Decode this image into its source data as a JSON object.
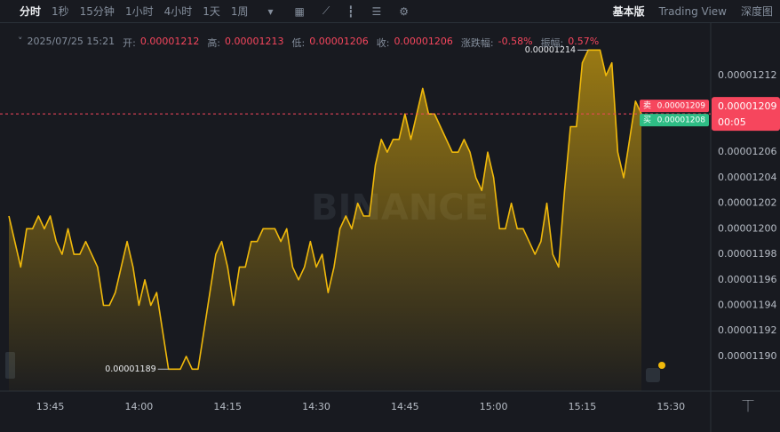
{
  "toolbar": {
    "intervals": [
      "分时",
      "1秒",
      "15分钟",
      "1小时",
      "4小时",
      "1天",
      "1周"
    ],
    "views": [
      "基本版",
      "Trading View",
      "深度图"
    ]
  },
  "info": {
    "time": "2025/07/25 15:21",
    "items": [
      {
        "label": "开:",
        "value": 1.212e-05
      },
      {
        "label": "高:",
        "value": 1.213e-05
      },
      {
        "label": "低:",
        "value": 1.206e-05
      },
      {
        "label": "收:",
        "value": 1.206e-05
      },
      {
        "label": "涨跌幅:",
        "value": "-0.58%"
      },
      {
        "label": "振幅:",
        "value": "0.57%"
      }
    ]
  },
  "watermark": "BINANCE",
  "chart_data": {
    "type": "area",
    "color": "#f0b90b",
    "grid": false,
    "x": [
      "13:38",
      "13:39",
      "13:40",
      "13:41",
      "13:42",
      "13:43",
      "13:44",
      "13:45",
      "13:46",
      "13:47",
      "13:48",
      "13:49",
      "13:50",
      "13:51",
      "13:52",
      "13:53",
      "13:54",
      "13:55",
      "13:56",
      "13:57",
      "13:58",
      "13:59",
      "14:00",
      "14:01",
      "14:02",
      "14:03",
      "14:04",
      "14:05",
      "14:06",
      "14:07",
      "14:08",
      "14:09",
      "14:10",
      "14:11",
      "14:12",
      "14:13",
      "14:14",
      "14:15",
      "14:16",
      "14:17",
      "14:18",
      "14:19",
      "14:20",
      "14:21",
      "14:22",
      "14:23",
      "14:24",
      "14:25",
      "14:26",
      "14:27",
      "14:28",
      "14:29",
      "14:30",
      "14:31",
      "14:32",
      "14:33",
      "14:34",
      "14:35",
      "14:36",
      "14:37",
      "14:38",
      "14:39",
      "14:40",
      "14:41",
      "14:42",
      "14:43",
      "14:44",
      "14:45",
      "14:46",
      "14:47",
      "14:48",
      "14:49",
      "14:50",
      "14:51",
      "14:52",
      "14:53",
      "14:54",
      "14:55",
      "14:56",
      "14:57",
      "14:58",
      "14:59",
      "15:00",
      "15:01",
      "15:02",
      "15:03",
      "15:04",
      "15:05",
      "15:06",
      "15:07",
      "15:08",
      "15:09",
      "15:10",
      "15:11",
      "15:12",
      "15:13",
      "15:14",
      "15:15",
      "15:16",
      "15:17",
      "15:18",
      "15:19",
      "15:20",
      "15:21",
      "15:22",
      "15:23",
      "15:24",
      "15:25"
    ],
    "values": [
      1.201e-05,
      1.199e-05,
      1.197e-05,
      1.2e-05,
      1.2e-05,
      1.201e-05,
      1.2e-05,
      1.201e-05,
      1.199e-05,
      1.198e-05,
      1.2e-05,
      1.198e-05,
      1.198e-05,
      1.199e-05,
      1.198e-05,
      1.197e-05,
      1.194e-05,
      1.194e-05,
      1.195e-05,
      1.197e-05,
      1.199e-05,
      1.197e-05,
      1.194e-05,
      1.196e-05,
      1.194e-05,
      1.195e-05,
      1.192e-05,
      1.189e-05,
      1.189e-05,
      1.189e-05,
      1.19e-05,
      1.189e-05,
      1.189e-05,
      1.192e-05,
      1.195e-05,
      1.198e-05,
      1.199e-05,
      1.197e-05,
      1.194e-05,
      1.197e-05,
      1.197e-05,
      1.199e-05,
      1.199e-05,
      1.2e-05,
      1.2e-05,
      1.2e-05,
      1.199e-05,
      1.2e-05,
      1.197e-05,
      1.196e-05,
      1.197e-05,
      1.199e-05,
      1.197e-05,
      1.198e-05,
      1.195e-05,
      1.197e-05,
      1.2e-05,
      1.201e-05,
      1.2e-05,
      1.202e-05,
      1.201e-05,
      1.201e-05,
      1.205e-05,
      1.207e-05,
      1.206e-05,
      1.207e-05,
      1.207e-05,
      1.209e-05,
      1.207e-05,
      1.209e-05,
      1.211e-05,
      1.209e-05,
      1.209e-05,
      1.208e-05,
      1.207e-05,
      1.206e-05,
      1.206e-05,
      1.207e-05,
      1.206e-05,
      1.204e-05,
      1.203e-05,
      1.206e-05,
      1.204e-05,
      1.2e-05,
      1.2e-05,
      1.202e-05,
      1.2e-05,
      1.2e-05,
      1.199e-05,
      1.198e-05,
      1.199e-05,
      1.202e-05,
      1.198e-05,
      1.197e-05,
      1.203e-05,
      1.208e-05,
      1.208e-05,
      1.213e-05,
      1.214e-05,
      1.214e-05,
      1.214e-05,
      1.212e-05,
      1.213e-05,
      1.206e-05,
      1.204e-05,
      1.207e-05,
      1.21e-05,
      1.209e-05
    ],
    "xlim": [
      "13:38",
      "15:25"
    ],
    "xticks": [
      "13:45",
      "14:00",
      "14:15",
      "14:30",
      "14:45",
      "15:00",
      "15:15",
      "15:30"
    ],
    "ylim": [
      1.187e-05,
      1.215e-05
    ],
    "yticks": [
      1.212e-05,
      1.206e-05,
      1.204e-05,
      1.202e-05,
      {
        "value": 1.2e-05,
        "label": "0.00001200"
      },
      1.198e-05,
      1.196e-05,
      1.194e-05,
      1.192e-05,
      {
        "value": 1.19e-05,
        "label": "0.00001190"
      }
    ],
    "annotations": [
      {
        "value": 1.189e-05
      },
      {
        "value": 1.214e-05
      }
    ],
    "price_tag": {
      "value": 1.209e-05,
      "countdown": "00:05"
    },
    "order_book": [
      {
        "label": "卖",
        "value": 1.209e-05,
        "color": "#f6465d"
      },
      {
        "label": "买",
        "value": 1.208e-05,
        "color": "#2ebd85"
      }
    ]
  }
}
